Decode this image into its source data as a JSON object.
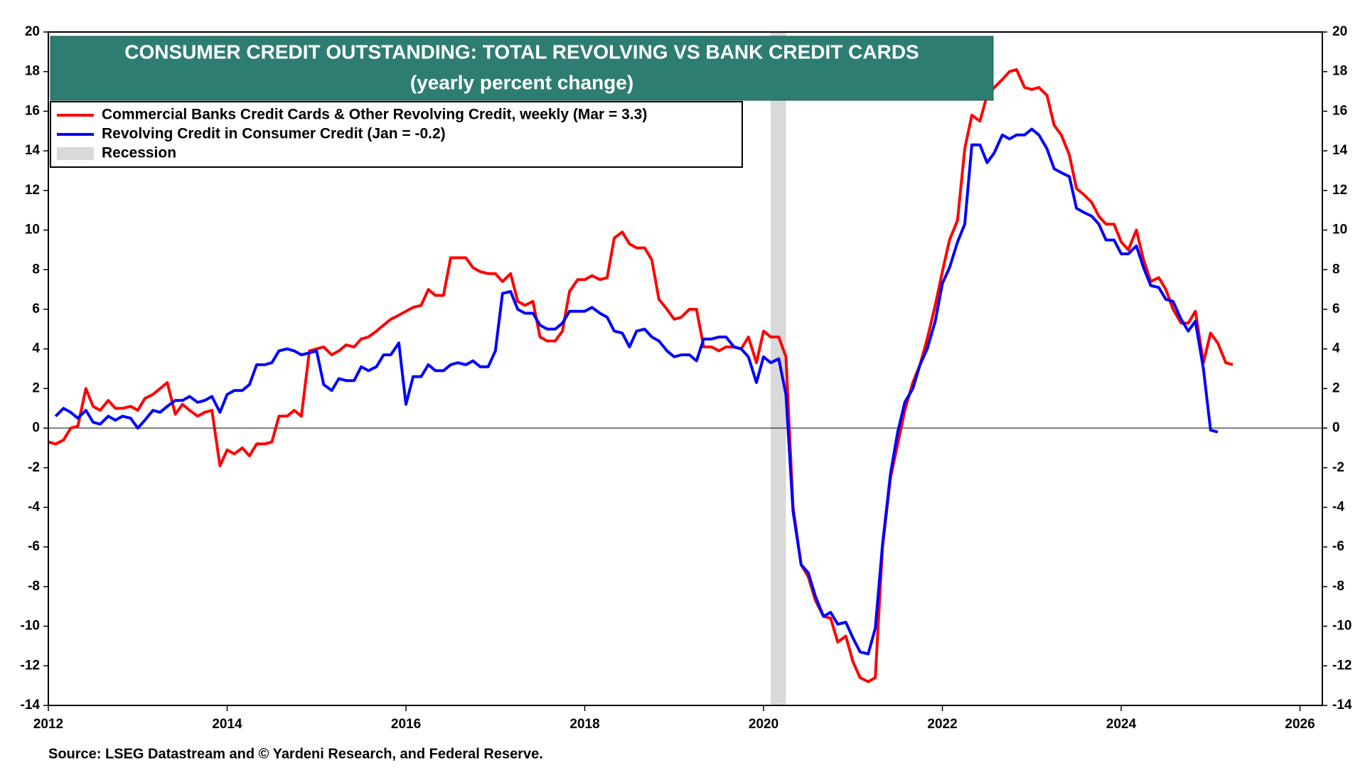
{
  "chart_data": {
    "type": "line",
    "title": "CONSUMER CREDIT OUTSTANDING: TOTAL REVOLVING VS BANK CREDIT CARDS",
    "subtitle": "(yearly percent change)",
    "source": "Source: LSEG Datastream and © Yardeni Research, and Federal Reserve.",
    "xlim": [
      2012,
      2026.25
    ],
    "xticks": [
      2012,
      2014,
      2016,
      2018,
      2020,
      2022,
      2024,
      2026
    ],
    "ylim": [
      -14,
      20
    ],
    "yticks": [
      -14,
      -12,
      -10,
      -8,
      -6,
      -4,
      -2,
      0,
      2,
      4,
      6,
      8,
      10,
      12,
      14,
      16,
      18,
      20
    ],
    "recession": {
      "name": "Recession",
      "color": "#d9d9d9",
      "start": 2020.08,
      "end": 2020.25
    },
    "series": [
      {
        "name": "Commercial Banks Credit Cards & Other Revolving Credit, weekly (Mar = 3.3)",
        "color": "#ff0000",
        "x": [
          2012.0,
          2012.08,
          2012.17,
          2012.25,
          2012.33,
          2012.42,
          2012.5,
          2012.58,
          2012.67,
          2012.75,
          2012.83,
          2012.92,
          2013.0,
          2013.08,
          2013.17,
          2013.25,
          2013.33,
          2013.42,
          2013.5,
          2013.58,
          2013.67,
          2013.75,
          2013.83,
          2013.92,
          2014.0,
          2014.08,
          2014.17,
          2014.25,
          2014.33,
          2014.42,
          2014.5,
          2014.58,
          2014.67,
          2014.75,
          2014.83,
          2014.92,
          2015.0,
          2015.08,
          2015.17,
          2015.25,
          2015.33,
          2015.42,
          2015.5,
          2015.58,
          2015.67,
          2015.75,
          2015.83,
          2015.92,
          2016.0,
          2016.08,
          2016.17,
          2016.25,
          2016.33,
          2016.42,
          2016.5,
          2016.58,
          2016.67,
          2016.75,
          2016.83,
          2016.92,
          2017.0,
          2017.08,
          2017.17,
          2017.25,
          2017.33,
          2017.42,
          2017.5,
          2017.58,
          2017.67,
          2017.75,
          2017.83,
          2017.92,
          2018.0,
          2018.08,
          2018.17,
          2018.25,
          2018.33,
          2018.42,
          2018.5,
          2018.58,
          2018.67,
          2018.75,
          2018.83,
          2018.92,
          2019.0,
          2019.08,
          2019.17,
          2019.25,
          2019.33,
          2019.42,
          2019.5,
          2019.58,
          2019.67,
          2019.75,
          2019.83,
          2019.92,
          2020.0,
          2020.08,
          2020.17,
          2020.25,
          2020.33,
          2020.42,
          2020.5,
          2020.58,
          2020.67,
          2020.75,
          2020.83,
          2020.92,
          2021.0,
          2021.08,
          2021.17,
          2021.25,
          2021.33,
          2021.42,
          2021.5,
          2021.58,
          2021.67,
          2021.75,
          2021.83,
          2021.92,
          2022.0,
          2022.08,
          2022.17,
          2022.25,
          2022.33,
          2022.42,
          2022.5,
          2022.58,
          2022.67,
          2022.75,
          2022.83,
          2022.92,
          2023.0,
          2023.08,
          2023.17,
          2023.25,
          2023.33,
          2023.42,
          2023.5,
          2023.58,
          2023.67,
          2023.75,
          2023.83,
          2023.92,
          2024.0,
          2024.08,
          2024.17,
          2024.25,
          2024.33,
          2024.42,
          2024.5,
          2024.58,
          2024.67,
          2024.75,
          2024.83,
          2024.92,
          2025.0,
          2025.08,
          2025.17,
          2025.25
        ],
        "values": [
          -0.7,
          -0.8,
          -0.6,
          0,
          0.1,
          2.0,
          1.1,
          0.9,
          1.4,
          1.0,
          1.0,
          1.1,
          0.9,
          1.5,
          1.7,
          2.0,
          2.3,
          0.7,
          1.2,
          0.9,
          0.6,
          0.8,
          0.9,
          -1.9,
          -1.1,
          -1.3,
          -1.0,
          -1.4,
          -0.8,
          -0.8,
          -0.7,
          0.6,
          0.6,
          0.9,
          0.6,
          3.9,
          4.0,
          4.1,
          3.7,
          3.9,
          4.2,
          4.1,
          4.5,
          4.6,
          4.9,
          5.2,
          5.5,
          5.7,
          5.9,
          6.1,
          6.2,
          7.0,
          6.7,
          6.7,
          8.6,
          8.6,
          8.6,
          8.1,
          7.9,
          7.8,
          7.8,
          7.4,
          7.8,
          6.4,
          6.2,
          6.4,
          4.6,
          4.4,
          4.4,
          4.9,
          6.9,
          7.5,
          7.5,
          7.7,
          7.5,
          7.6,
          9.6,
          9.9,
          9.3,
          9.1,
          9.1,
          8.5,
          6.5,
          6.0,
          5.5,
          5.6,
          6.0,
          6.0,
          4.1,
          4.1,
          3.9,
          4.1,
          4.1,
          4.0,
          4.6,
          3.3,
          4.9,
          4.6,
          4.6,
          3.6,
          -4.0,
          -6.9,
          -7.5,
          -8.7,
          -9.5,
          -9.6,
          -10.8,
          -10.5,
          -11.8,
          -12.6,
          -12.8,
          -12.6,
          -6.0,
          -2.5,
          -0.8,
          0.9,
          2.3,
          3.2,
          4.5,
          6.2,
          7.9,
          9.5,
          10.5,
          14.1,
          15.8,
          15.5,
          16.8,
          17.2,
          17.6,
          18.0,
          18.1,
          17.2,
          17.1,
          17.2,
          16.8,
          15.3,
          14.8,
          13.8,
          12.1,
          11.8,
          11.4,
          10.7,
          10.3,
          10.3,
          9.4,
          9.0,
          10.0,
          8.5,
          7.4,
          7.6,
          7.0,
          6.0,
          5.3,
          5.3,
          5.9,
          3.3,
          4.8,
          4.3,
          3.3,
          3.2
        ]
      },
      {
        "name": "Revolving Credit in Consumer Credit (Jan = -0.2)",
        "color": "#0000ff",
        "x": [
          2012.08,
          2012.17,
          2012.25,
          2012.33,
          2012.42,
          2012.5,
          2012.58,
          2012.67,
          2012.75,
          2012.83,
          2012.92,
          2013.0,
          2013.08,
          2013.17,
          2013.25,
          2013.33,
          2013.42,
          2013.5,
          2013.58,
          2013.67,
          2013.75,
          2013.83,
          2013.92,
          2014.0,
          2014.08,
          2014.17,
          2014.25,
          2014.33,
          2014.42,
          2014.5,
          2014.58,
          2014.67,
          2014.75,
          2014.83,
          2014.92,
          2015.0,
          2015.08,
          2015.17,
          2015.25,
          2015.33,
          2015.42,
          2015.5,
          2015.58,
          2015.67,
          2015.75,
          2015.83,
          2015.92,
          2016.0,
          2016.08,
          2016.17,
          2016.25,
          2016.33,
          2016.42,
          2016.5,
          2016.58,
          2016.67,
          2016.75,
          2016.83,
          2016.92,
          2017.0,
          2017.08,
          2017.17,
          2017.25,
          2017.33,
          2017.42,
          2017.5,
          2017.58,
          2017.67,
          2017.75,
          2017.83,
          2017.92,
          2018.0,
          2018.08,
          2018.17,
          2018.25,
          2018.33,
          2018.42,
          2018.5,
          2018.58,
          2018.67,
          2018.75,
          2018.83,
          2018.92,
          2019.0,
          2019.08,
          2019.17,
          2019.25,
          2019.33,
          2019.42,
          2019.5,
          2019.58,
          2019.67,
          2019.75,
          2019.83,
          2019.92,
          2020.0,
          2020.08,
          2020.17,
          2020.25,
          2020.33,
          2020.42,
          2020.5,
          2020.58,
          2020.67,
          2020.75,
          2020.83,
          2020.92,
          2021.0,
          2021.08,
          2021.17,
          2021.25,
          2021.33,
          2021.42,
          2021.5,
          2021.58,
          2021.67,
          2021.75,
          2021.83,
          2021.92,
          2022.0,
          2022.08,
          2022.17,
          2022.25,
          2022.33,
          2022.42,
          2022.5,
          2022.58,
          2022.67,
          2022.75,
          2022.83,
          2022.92,
          2023.0,
          2023.08,
          2023.17,
          2023.25,
          2023.33,
          2023.42,
          2023.5,
          2023.58,
          2023.67,
          2023.75,
          2023.83,
          2023.92,
          2024.0,
          2024.08,
          2024.17,
          2024.25,
          2024.33,
          2024.42,
          2024.5,
          2024.58,
          2024.67,
          2024.75,
          2024.83,
          2024.92,
          2025.0,
          2025.08
        ],
        "values": [
          0.6,
          1.0,
          0.8,
          0.5,
          0.9,
          0.3,
          0.2,
          0.6,
          0.4,
          0.6,
          0.5,
          0.0,
          0.4,
          0.9,
          0.8,
          1.1,
          1.4,
          1.4,
          1.6,
          1.3,
          1.4,
          1.6,
          0.8,
          1.7,
          1.9,
          1.9,
          2.2,
          3.2,
          3.2,
          3.3,
          3.9,
          4.0,
          3.9,
          3.7,
          3.8,
          3.9,
          2.2,
          1.9,
          2.5,
          2.4,
          2.4,
          3.1,
          2.9,
          3.1,
          3.7,
          3.7,
          4.3,
          1.2,
          2.6,
          2.6,
          3.2,
          2.9,
          2.9,
          3.2,
          3.3,
          3.2,
          3.4,
          3.1,
          3.1,
          3.9,
          6.8,
          6.9,
          6.0,
          5.8,
          5.8,
          5.2,
          5.0,
          5.0,
          5.3,
          5.9,
          5.9,
          5.9,
          6.1,
          5.8,
          5.6,
          4.9,
          4.8,
          4.1,
          4.9,
          5.0,
          4.6,
          4.4,
          3.9,
          3.6,
          3.7,
          3.7,
          3.4,
          4.5,
          4.5,
          4.6,
          4.6,
          4.1,
          4.0,
          3.6,
          2.3,
          3.6,
          3.3,
          3.5,
          1.7,
          -4.2,
          -6.9,
          -7.3,
          -8.5,
          -9.5,
          -9.3,
          -9.9,
          -9.8,
          -10.6,
          -11.3,
          -11.4,
          -10.1,
          -5.9,
          -2.3,
          -0.2,
          1.3,
          2.0,
          3.2,
          4.0,
          5.4,
          7.3,
          8.1,
          9.4,
          10.3,
          14.3,
          14.3,
          13.4,
          13.9,
          14.8,
          14.6,
          14.8,
          14.8,
          15.1,
          14.8,
          14.1,
          13.1,
          12.9,
          12.7,
          11.1,
          10.9,
          10.7,
          10.3,
          9.5,
          9.5,
          8.8,
          8.8,
          9.2,
          8.1,
          7.2,
          7.1,
          6.5,
          6.4,
          5.5,
          4.9,
          5.4,
          3.0,
          -0.1,
          -0.2
        ]
      }
    ]
  }
}
